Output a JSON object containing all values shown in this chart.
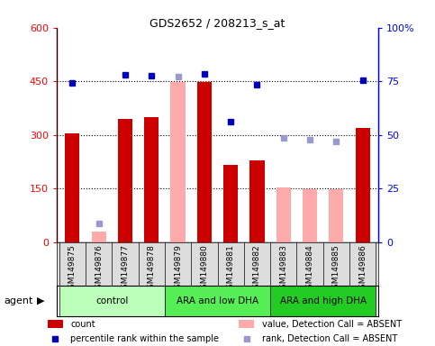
{
  "title": "GDS2652 / 208213_s_at",
  "samples": [
    "GSM149875",
    "GSM149876",
    "GSM149877",
    "GSM149878",
    "GSM149879",
    "GSM149880",
    "GSM149881",
    "GSM149882",
    "GSM149883",
    "GSM149884",
    "GSM149885",
    "GSM149886"
  ],
  "groups": [
    {
      "name": "control",
      "start": 0,
      "end": 3,
      "color": "#bbffbb"
    },
    {
      "name": "ARA and low DHA",
      "start": 4,
      "end": 7,
      "color": "#55ee55"
    },
    {
      "name": "ARA and high DHA",
      "start": 8,
      "end": 11,
      "color": "#22cc22"
    }
  ],
  "count_present": [
    305,
    null,
    345,
    350,
    null,
    448,
    215,
    230,
    null,
    null,
    null,
    320
  ],
  "count_absent": [
    null,
    30,
    null,
    null,
    448,
    null,
    null,
    null,
    152,
    148,
    148,
    null
  ],
  "rank_present": [
    445,
    null,
    468,
    466,
    null,
    472,
    338,
    440,
    null,
    null,
    null,
    453
  ],
  "rank_absent": [
    null,
    52,
    null,
    null,
    463,
    null,
    null,
    null,
    293,
    288,
    283,
    null
  ],
  "ylim_left": [
    0,
    600
  ],
  "ylim_right": [
    0,
    100
  ],
  "yticks_left": [
    0,
    150,
    300,
    450,
    600
  ],
  "ytick_labels_left": [
    "0",
    "150",
    "300",
    "450",
    "600"
  ],
  "yticks_right": [
    0,
    25,
    50,
    75,
    100
  ],
  "ytick_labels_right": [
    "0",
    "25",
    "50",
    "75",
    "100%"
  ],
  "hlines": [
    150,
    300,
    450
  ],
  "bar_color_present": "#cc0000",
  "bar_color_absent": "#ffaaaa",
  "sq_color_present": "#0000bb",
  "sq_color_absent": "#9999cc",
  "bar_width": 0.55,
  "scale_factor": 6.0
}
